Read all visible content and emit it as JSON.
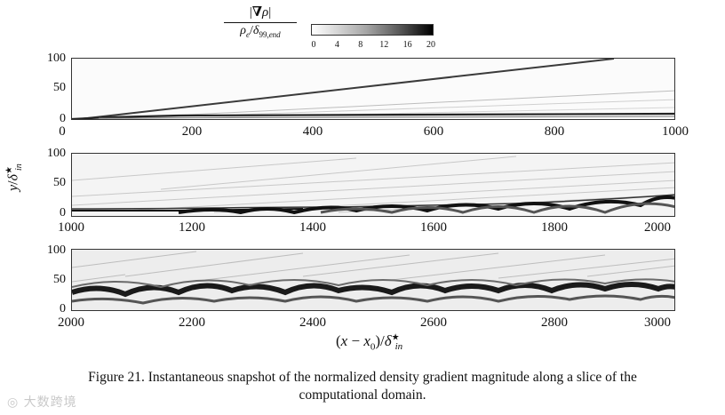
{
  "figure": {
    "colorbar": {
      "label_numerator": "|∇ρ|",
      "label_denominator": "ρe/δ99,end",
      "ticks": [
        "0",
        "4",
        "8",
        "12",
        "16",
        "20"
      ],
      "range": [
        0,
        20
      ],
      "colors": {
        "low": "#ffffff",
        "high": "#000000"
      }
    },
    "ylabel": "y/δ*in",
    "xlabel": "(x − x0)/δ*in",
    "panels": [
      {
        "xticks": [
          "0",
          "200",
          "400",
          "600",
          "800",
          "1000"
        ],
        "yticks": [
          "100",
          "50",
          "0"
        ]
      },
      {
        "xticks": [
          "1000",
          "1200",
          "1400",
          "1600",
          "1800",
          "2000"
        ],
        "yticks": [
          "100",
          "50",
          "0"
        ]
      },
      {
        "xticks": [
          "2000",
          "2200",
          "2400",
          "2600",
          "2800",
          "3000"
        ],
        "yticks": [
          "100",
          "50",
          "0"
        ]
      }
    ]
  },
  "caption": {
    "line1": "Figure  21.  Instantaneous snapshot of the normalized density gradient magnitude along a slice of the",
    "line2": "computational domain."
  },
  "watermark": "大数跨境"
}
